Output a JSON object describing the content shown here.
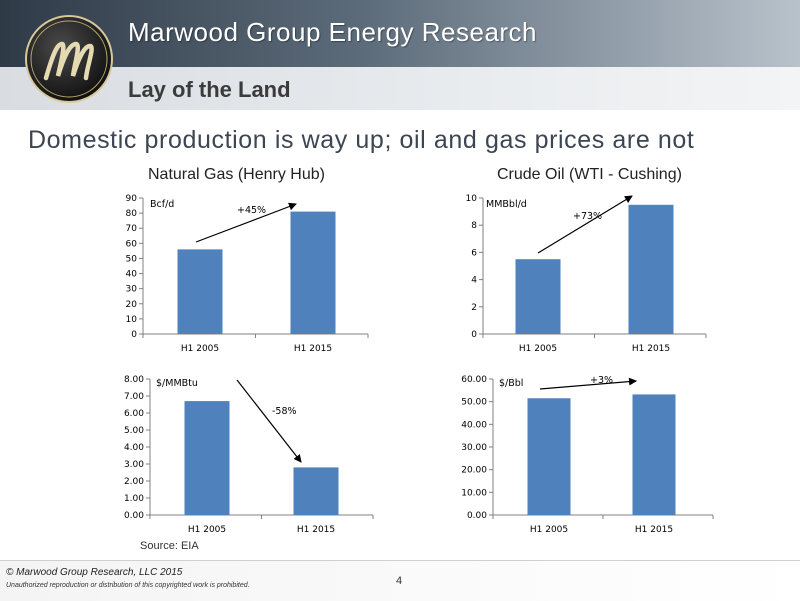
{
  "header": {
    "company": "Marwood Group Energy Research",
    "section": "Lay of the Land"
  },
  "headline": "Domestic production is way up; oil and gas prices are not",
  "source": "Source: EIA",
  "footer": {
    "copyright": "© Marwood Group Research, LLC 2015",
    "notice": "Unauthorized reproduction or distribution of this copyrighted work is prohibited.",
    "page_number": "4"
  },
  "colors": {
    "bar": "#4f81bd"
  },
  "chart_data": [
    {
      "id": "gas-production",
      "type": "bar",
      "title": "Natural Gas (Henry Hub)",
      "unit": "Bcf/d",
      "categories": [
        "H1 2005",
        "H1 2015"
      ],
      "values": [
        56,
        81
      ],
      "ylim": [
        0,
        90
      ],
      "yticks": [
        "0",
        "10",
        "20",
        "30",
        "40",
        "50",
        "60",
        "70",
        "80",
        "90"
      ],
      "annotation": "+45%"
    },
    {
      "id": "oil-production",
      "type": "bar",
      "title": "Crude Oil (WTI - Cushing)",
      "unit": "MMBbl/d",
      "categories": [
        "H1 2005",
        "H1 2015"
      ],
      "values": [
        5.5,
        9.5
      ],
      "ylim": [
        0,
        10
      ],
      "yticks": [
        "0",
        "2",
        "4",
        "6",
        "8",
        "10"
      ],
      "annotation": "+73%"
    },
    {
      "id": "gas-price",
      "type": "bar",
      "title": "",
      "unit": "$/MMBtu",
      "categories": [
        "H1 2005",
        "H1 2015"
      ],
      "values": [
        6.7,
        2.8
      ],
      "ylim": [
        0,
        8
      ],
      "yticks": [
        "0.00",
        "1.00",
        "2.00",
        "3.00",
        "4.00",
        "5.00",
        "6.00",
        "7.00",
        "8.00"
      ],
      "annotation": "-58%"
    },
    {
      "id": "oil-price",
      "type": "bar",
      "title": "",
      "unit": "$/Bbl",
      "categories": [
        "H1 2005",
        "H1 2015"
      ],
      "values": [
        51.5,
        53.2
      ],
      "ylim": [
        0,
        60
      ],
      "yticks": [
        "0.00",
        "10.00",
        "20.00",
        "30.00",
        "40.00",
        "50.00",
        "60.00"
      ],
      "annotation": "+3%"
    }
  ]
}
